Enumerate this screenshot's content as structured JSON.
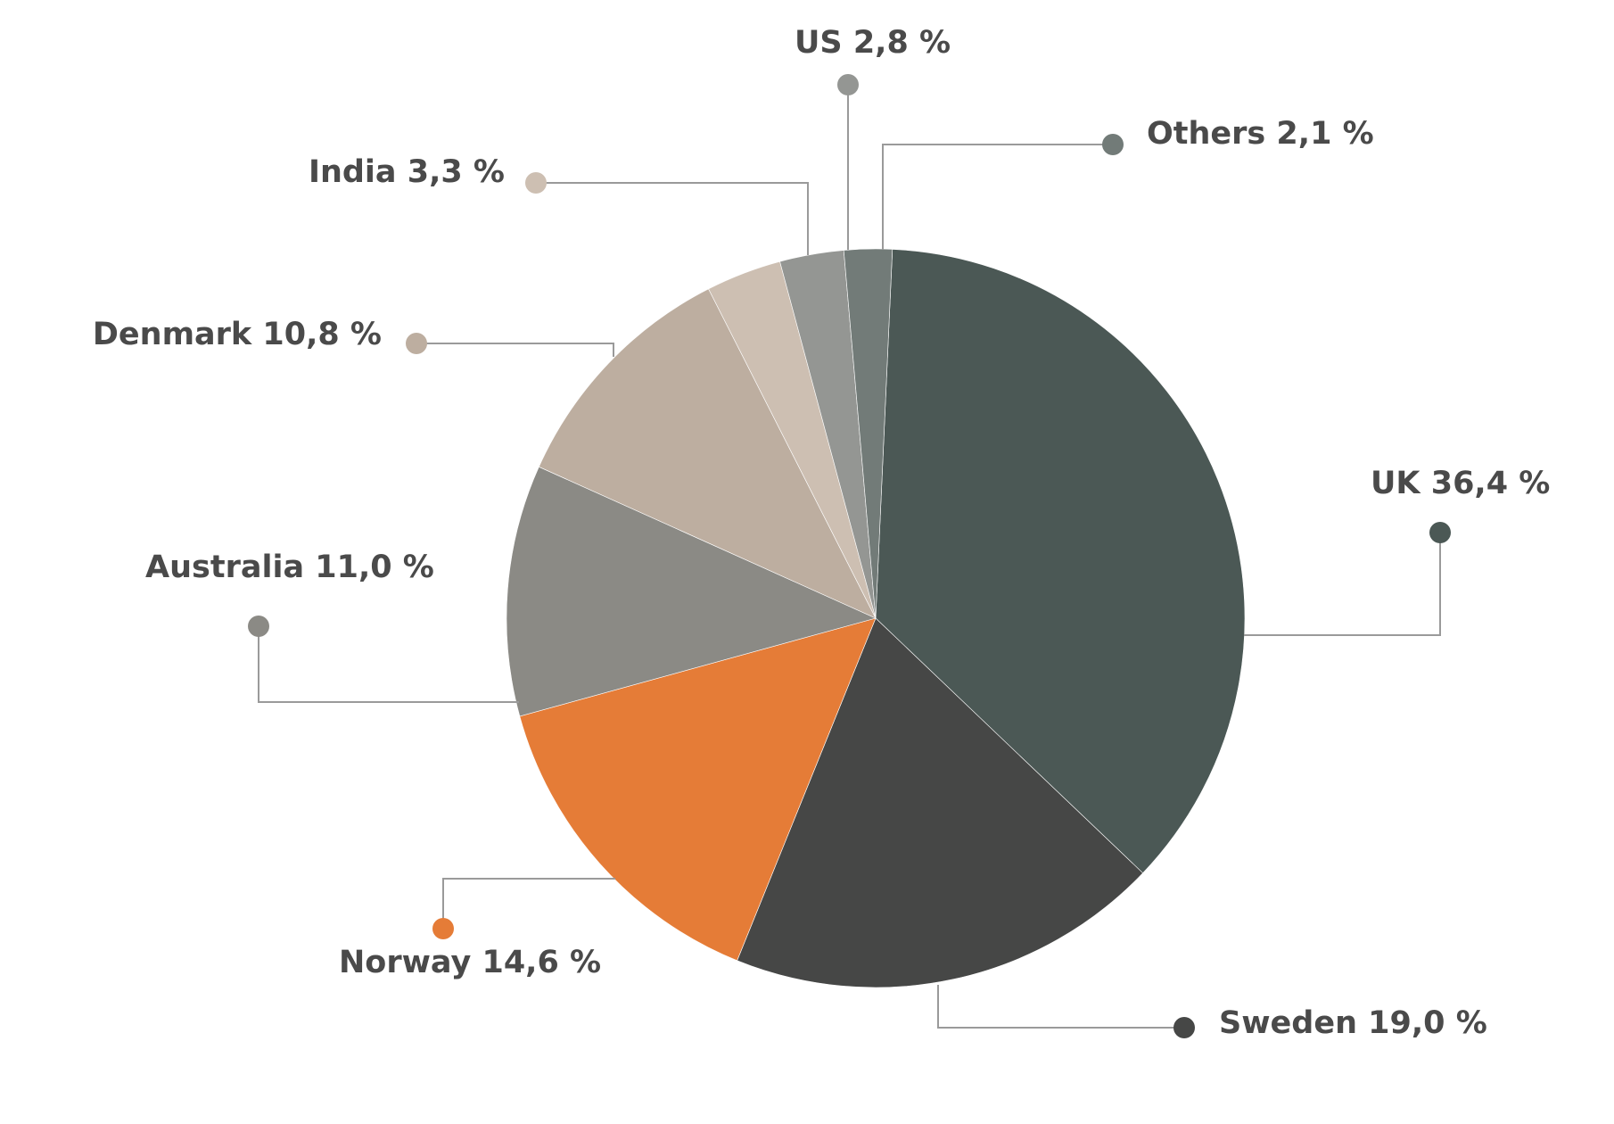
{
  "chart_data": {
    "type": "pie",
    "title": "",
    "slices": [
      {
        "name": "UK",
        "value": 36.4,
        "label": "UK 36,4 %",
        "color": "#4b5855"
      },
      {
        "name": "Sweden",
        "value": 19.0,
        "label": "Sweden 19,0 %",
        "color": "#464746"
      },
      {
        "name": "Norway",
        "value": 14.6,
        "label": "Norway 14,6 %",
        "color": "#e57c37"
      },
      {
        "name": "Australia",
        "value": 11.0,
        "label": "Australia 11,0 %",
        "color": "#8b8a85"
      },
      {
        "name": "Denmark",
        "value": 10.8,
        "label": "Denmark 10,8 %",
        "color": "#bdaea0"
      },
      {
        "name": "India",
        "value": 3.3,
        "label": "India 3,3 %",
        "color": "#cdbfb2"
      },
      {
        "name": "US",
        "value": 2.8,
        "label": "US 2,8 %",
        "color": "#949693"
      },
      {
        "name": "Others",
        "value": 2.1,
        "label": "Others 2,1 %",
        "color": "#727b78"
      }
    ]
  }
}
